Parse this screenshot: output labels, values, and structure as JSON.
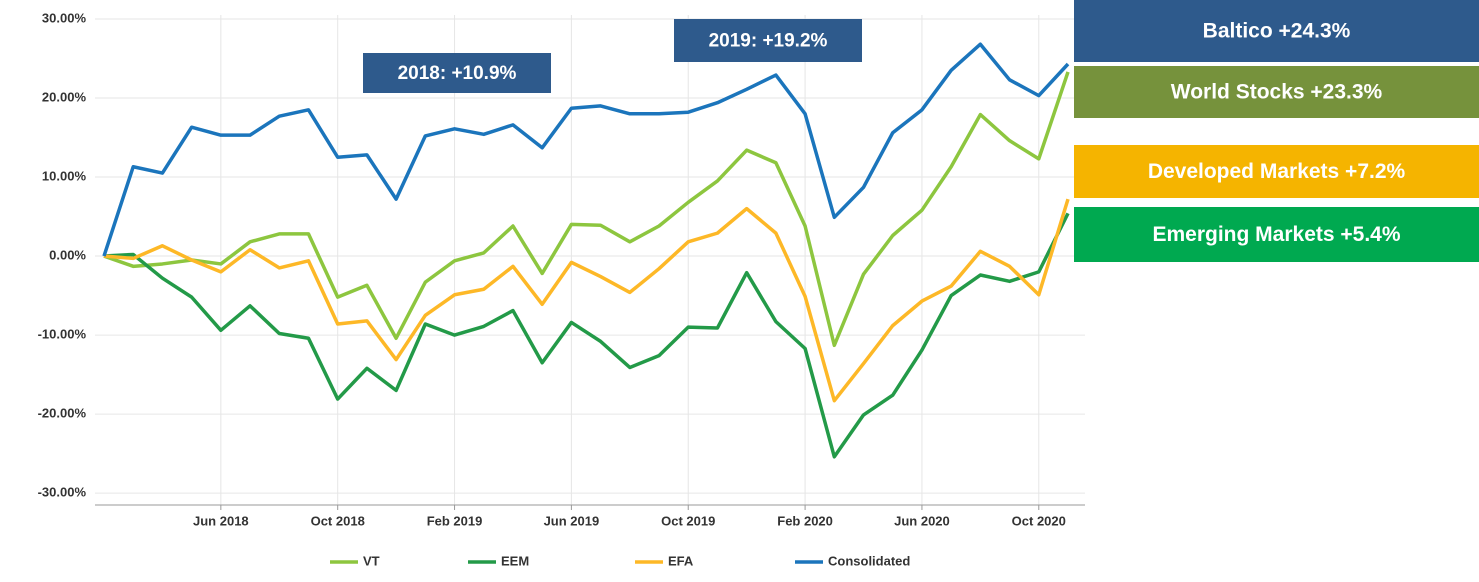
{
  "chart_data": {
    "type": "line",
    "categories": [
      null,
      null,
      null,
      null,
      "Jun 2018",
      null,
      null,
      null,
      "Oct 2018",
      null,
      null,
      null,
      "Feb 2019",
      null,
      null,
      null,
      "Jun 2019",
      null,
      null,
      null,
      "Oct 2019",
      null,
      null,
      null,
      "Feb 2020",
      null,
      null,
      null,
      "Jun 2020",
      null,
      null,
      null,
      "Oct 2020",
      null
    ],
    "series": [
      {
        "name": "VT",
        "color": "#8dc63f",
        "values": [
          0,
          -1.3,
          -1.0,
          -0.5,
          -1.0,
          1.8,
          2.8,
          2.8,
          -5.2,
          -3.7,
          -10.4,
          -3.3,
          -0.6,
          0.4,
          3.8,
          -2.2,
          4.0,
          3.9,
          1.8,
          3.8,
          6.8,
          9.5,
          13.4,
          11.8,
          3.8,
          -11.3,
          -2.3,
          2.6,
          5.8,
          11.3,
          17.9,
          14.6,
          12.3,
          23.3
        ]
      },
      {
        "name": "EEM",
        "color": "#239a48",
        "values": [
          0,
          0.2,
          -2.8,
          -5.2,
          -9.4,
          -6.3,
          -9.8,
          -10.4,
          -18.1,
          -14.2,
          -17.0,
          -8.6,
          -10.0,
          -8.9,
          -6.9,
          -13.5,
          -8.4,
          -10.8,
          -14.1,
          -12.6,
          -9.0,
          -9.1,
          -2.1,
          -8.3,
          -11.7,
          -25.4,
          -20.1,
          -17.6,
          -11.9,
          -5.0,
          -2.4,
          -3.2,
          -2.0,
          5.4
        ]
      },
      {
        "name": "EFA",
        "color": "#fdb827",
        "values": [
          0,
          -0.3,
          1.3,
          -0.5,
          -2.0,
          0.8,
          -1.5,
          -0.6,
          -8.6,
          -8.2,
          -13.1,
          -7.5,
          -4.9,
          -4.2,
          -1.3,
          -6.1,
          -0.8,
          -2.6,
          -4.6,
          -1.6,
          1.8,
          2.9,
          6.0,
          2.9,
          -5.1,
          -18.3,
          -13.6,
          -8.8,
          -5.7,
          -3.8,
          0.6,
          -1.3,
          -4.9,
          7.2
        ]
      },
      {
        "name": "Consolidated",
        "color": "#1b75bc",
        "values": [
          0,
          11.3,
          10.5,
          16.3,
          15.3,
          15.3,
          17.7,
          18.5,
          12.5,
          12.8,
          7.2,
          15.2,
          16.1,
          15.4,
          16.6,
          13.7,
          18.7,
          19.0,
          18.0,
          18.0,
          18.2,
          19.4,
          21.1,
          22.9,
          18.0,
          4.9,
          8.7,
          15.6,
          18.5,
          23.5,
          26.8,
          22.3,
          20.3,
          24.3
        ]
      }
    ],
    "ylim": [
      -31.5,
      30.5
    ],
    "yticks": [
      {
        "value": -30,
        "label": "-30.00%"
      },
      {
        "value": -20,
        "label": "-20.00%"
      },
      {
        "value": -10,
        "label": "-10.00%"
      },
      {
        "value": 0,
        "label": "0.00%"
      },
      {
        "value": 10,
        "label": "10.00%"
      },
      {
        "value": 20,
        "label": "20.00%"
      },
      {
        "value": 30,
        "label": "30.00%"
      }
    ],
    "grid": true,
    "annotations": [
      {
        "text": "2018: +10.9%",
        "color": "#2e5a8c"
      },
      {
        "text": "2019: +19.2%",
        "color": "#2e5a8c"
      },
      {
        "text": "Baltico +24.3%",
        "color": "#2e5a8c"
      },
      {
        "text": "World Stocks +23.3%",
        "color": "#76923c"
      },
      {
        "text": "Developed Markets +7.2%",
        "color": "#f5b400"
      },
      {
        "text": "Emerging Markets +5.4%",
        "color": "#00a950"
      }
    ]
  }
}
